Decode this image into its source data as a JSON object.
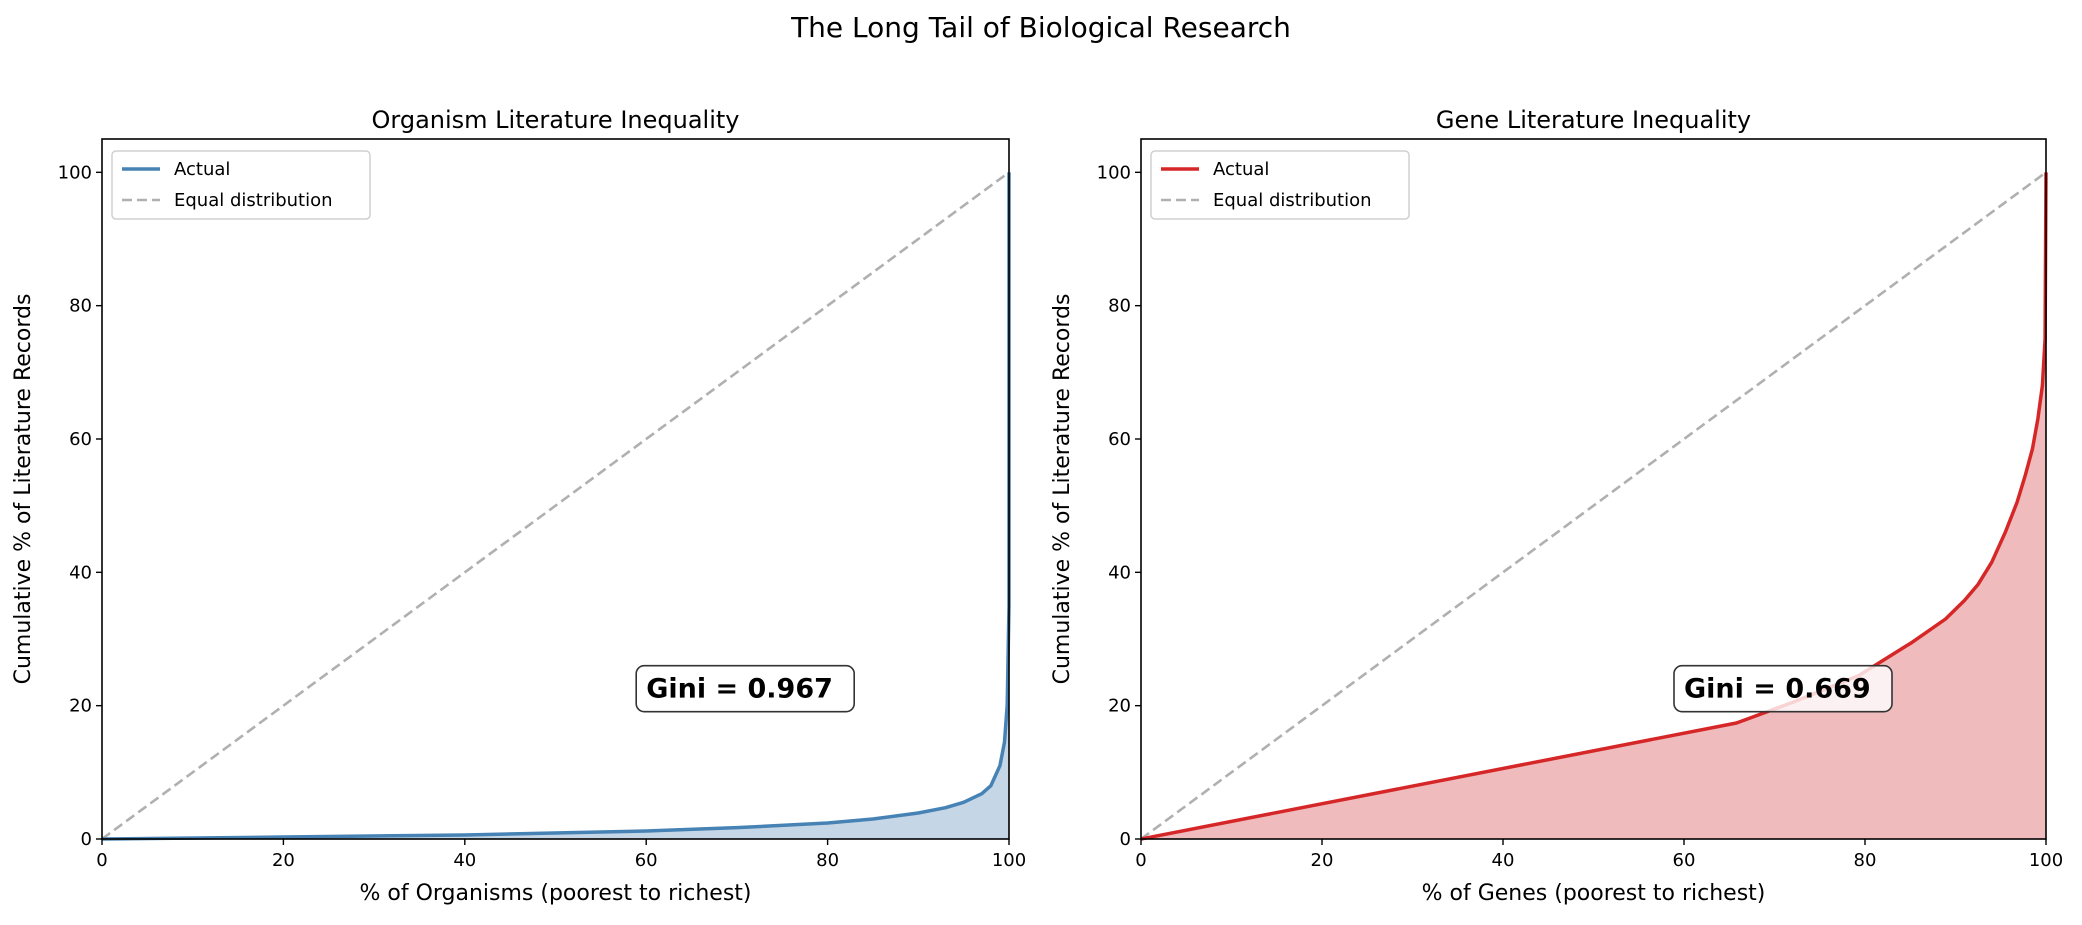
{
  "suptitle": "The Long Tail of Biological Research",
  "chart_data": [
    {
      "type": "area",
      "title": "Organism Literature Inequality",
      "xlabel": "% of Organisms (poorest to richest)",
      "ylabel": "Cumulative % of Literature Records",
      "xlim": [
        0,
        100
      ],
      "ylim": [
        0,
        105
      ],
      "xticks": [
        "0",
        "20",
        "40",
        "60",
        "80",
        "100"
      ],
      "yticks": [
        "0",
        "20",
        "40",
        "60",
        "80",
        "100"
      ],
      "grid": false,
      "legend_position": "top-left",
      "series": [
        {
          "name": "Actual",
          "color": "#4682b4",
          "fill": "#c5d7e7",
          "x": [
            0,
            20,
            40,
            60,
            70,
            80,
            85,
            90,
            93,
            95,
            97,
            98,
            99,
            99.5,
            99.8,
            100,
            100
          ],
          "y": [
            0,
            0.3,
            0.6,
            1.2,
            1.7,
            2.4,
            3.0,
            3.9,
            4.7,
            5.5,
            6.8,
            8.0,
            11.0,
            14.5,
            20,
            35,
            100
          ]
        },
        {
          "name": "Equal distribution",
          "color": "#b0b0b0",
          "dashed": true,
          "x": [
            0,
            100
          ],
          "y": [
            0,
            100
          ]
        }
      ],
      "annotation": {
        "text": "Gini = 0.967",
        "x": 60,
        "y": 20
      }
    },
    {
      "type": "area",
      "title": "Gene Literature Inequality",
      "xlabel": "% of Genes (poorest to richest)",
      "ylabel": "Cumulative % of Literature Records",
      "xlim": [
        0,
        100
      ],
      "ylim": [
        0,
        105
      ],
      "xticks": [
        "0",
        "20",
        "40",
        "60",
        "80",
        "100"
      ],
      "yticks": [
        "0",
        "20",
        "40",
        "60",
        "80",
        "100"
      ],
      "grid": false,
      "legend_position": "top-left",
      "series": [
        {
          "name": "Actual",
          "color": "#d62728",
          "fill": "#f0bbbc",
          "x": [
            0,
            65.8,
            72,
            79.3,
            85.2,
            88.9,
            91,
            92.5,
            94,
            95.5,
            96.8,
            97.7,
            98.5,
            99.1,
            99.6,
            99.9,
            100
          ],
          "y": [
            0,
            17.4,
            20.5,
            24.5,
            29.5,
            33,
            35.8,
            38.2,
            41.5,
            46,
            50.5,
            54.5,
            58.5,
            63,
            68,
            75,
            100
          ]
        },
        {
          "name": "Equal distribution",
          "color": "#b0b0b0",
          "dashed": true,
          "x": [
            0,
            100
          ],
          "y": [
            0,
            100
          ]
        }
      ],
      "annotation": {
        "text": "Gini = 0.669",
        "x": 60,
        "y": 20
      }
    }
  ]
}
